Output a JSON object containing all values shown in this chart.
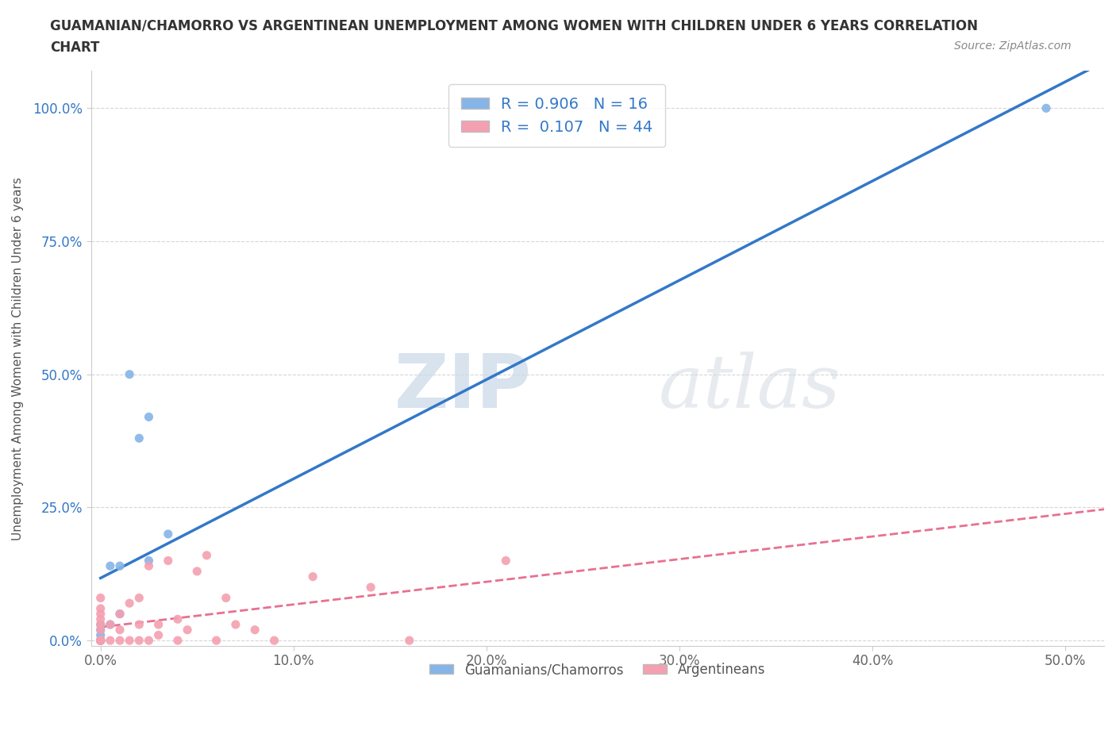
{
  "title_line1": "GUAMANIAN/CHAMORRO VS ARGENTINEAN UNEMPLOYMENT AMONG WOMEN WITH CHILDREN UNDER 6 YEARS CORRELATION",
  "title_line2": "CHART",
  "source": "Source: ZipAtlas.com",
  "ylabel": "Unemployment Among Women with Children Under 6 years",
  "x_tick_labels": [
    "0.0%",
    "10.0%",
    "20.0%",
    "30.0%",
    "40.0%",
    "50.0%"
  ],
  "x_tick_values": [
    0.0,
    10.0,
    20.0,
    30.0,
    40.0,
    50.0
  ],
  "y_tick_labels": [
    "0.0%",
    "25.0%",
    "50.0%",
    "75.0%",
    "100.0%"
  ],
  "y_tick_values": [
    0.0,
    25.0,
    50.0,
    75.0,
    100.0
  ],
  "xlim": [
    -0.5,
    52.0
  ],
  "ylim": [
    -1.0,
    107.0
  ],
  "guamanian_color": "#85b5e8",
  "argentinean_color": "#f4a0b0",
  "guamanian_R": 0.906,
  "guamanian_N": 16,
  "argentinean_R": 0.107,
  "argentinean_N": 44,
  "trend_guamanian_color": "#3378c8",
  "trend_argentinean_color": "#e87090",
  "watermark_zip": "ZIP",
  "watermark_atlas": "atlas",
  "background_color": "#ffffff",
  "guamanian_x": [
    0.0,
    0.0,
    0.0,
    0.0,
    0.0,
    0.0,
    0.5,
    0.5,
    1.0,
    1.0,
    1.5,
    2.0,
    2.5,
    2.5,
    3.5,
    49.0
  ],
  "guamanian_y": [
    0.0,
    0.0,
    0.0,
    1.0,
    2.0,
    3.0,
    3.0,
    14.0,
    5.0,
    14.0,
    50.0,
    38.0,
    42.0,
    15.0,
    20.0,
    100.0
  ],
  "argentinean_x": [
    0.0,
    0.0,
    0.0,
    0.0,
    0.0,
    0.0,
    0.0,
    0.0,
    0.0,
    0.0,
    0.0,
    0.0,
    0.0,
    0.0,
    0.0,
    0.5,
    0.5,
    1.0,
    1.0,
    1.0,
    1.5,
    1.5,
    2.0,
    2.0,
    2.0,
    2.5,
    2.5,
    3.0,
    3.0,
    3.5,
    4.0,
    4.0,
    4.5,
    5.0,
    5.5,
    6.0,
    6.5,
    7.0,
    8.0,
    9.0,
    11.0,
    14.0,
    16.0,
    21.0
  ],
  "argentinean_y": [
    0.0,
    0.0,
    0.0,
    0.0,
    0.0,
    0.0,
    0.0,
    0.0,
    0.0,
    2.0,
    3.0,
    4.0,
    5.0,
    6.0,
    8.0,
    0.0,
    3.0,
    0.0,
    2.0,
    5.0,
    0.0,
    7.0,
    0.0,
    3.0,
    8.0,
    0.0,
    14.0,
    1.0,
    3.0,
    15.0,
    0.0,
    4.0,
    2.0,
    13.0,
    16.0,
    0.0,
    8.0,
    3.0,
    2.0,
    0.0,
    12.0,
    10.0,
    0.0,
    15.0
  ]
}
